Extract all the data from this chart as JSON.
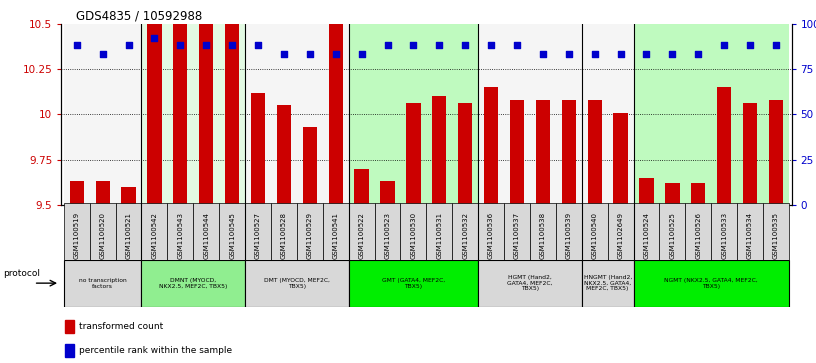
{
  "title": "GDS4835 / 10592988",
  "samples": [
    "GSM1100519",
    "GSM1100520",
    "GSM1100521",
    "GSM1100542",
    "GSM1100543",
    "GSM1100544",
    "GSM1100545",
    "GSM1100527",
    "GSM1100528",
    "GSM1100529",
    "GSM1100541",
    "GSM1100522",
    "GSM1100523",
    "GSM1100530",
    "GSM1100531",
    "GSM1100532",
    "GSM1100536",
    "GSM1100537",
    "GSM1100538",
    "GSM1100539",
    "GSM1100540",
    "GSM1102649",
    "GSM1100524",
    "GSM1100525",
    "GSM1100526",
    "GSM1100533",
    "GSM1100534",
    "GSM1100535"
  ],
  "transformed_count": [
    9.63,
    9.63,
    9.6,
    10.5,
    10.5,
    10.5,
    10.5,
    10.12,
    10.05,
    9.93,
    10.5,
    9.7,
    9.63,
    10.06,
    10.1,
    10.06,
    10.15,
    10.08,
    10.08,
    10.08,
    10.08,
    10.01,
    9.65,
    9.62,
    9.62,
    10.15,
    10.06,
    10.08
  ],
  "percentile_rank": [
    88,
    83,
    88,
    92,
    88,
    88,
    88,
    88,
    83,
    83,
    83,
    83,
    88,
    88,
    88,
    88,
    88,
    88,
    83,
    83,
    83,
    83,
    83,
    83,
    83,
    88,
    88,
    88
  ],
  "groups": [
    {
      "label": "no transcription\nfactors",
      "start": 0,
      "end": 3,
      "color": "#d8d8d8"
    },
    {
      "label": "DMNT (MYOCD,\nNKX2.5, MEF2C, TBX5)",
      "start": 3,
      "end": 7,
      "color": "#90ee90"
    },
    {
      "label": "DMT (MYOCD, MEF2C,\nTBX5)",
      "start": 7,
      "end": 11,
      "color": "#d8d8d8"
    },
    {
      "label": "GMT (GATA4, MEF2C,\nTBX5)",
      "start": 11,
      "end": 16,
      "color": "#00ee00"
    },
    {
      "label": "HGMT (Hand2,\nGATA4, MEF2C,\nTBX5)",
      "start": 16,
      "end": 20,
      "color": "#d8d8d8"
    },
    {
      "label": "HNGMT (Hand2,\nNKX2.5, GATA4,\nMEF2C, TBX5)",
      "start": 20,
      "end": 22,
      "color": "#d8d8d8"
    },
    {
      "label": "NGMT (NKX2.5, GATA4, MEF2C,\nTBX5)",
      "start": 22,
      "end": 28,
      "color": "#00ee00"
    }
  ],
  "bar_color": "#cc0000",
  "dot_color": "#0000cc",
  "ylim_left": [
    9.5,
    10.5
  ],
  "ylim_right": [
    0,
    100
  ],
  "yticks_left": [
    9.5,
    9.75,
    10.0,
    10.25,
    10.5
  ],
  "ytick_labels_left": [
    "9.5",
    "9.75",
    "10",
    "10.25",
    "10.5"
  ],
  "yticks_right": [
    0,
    25,
    50,
    75,
    100
  ],
  "ytick_labels_right": [
    "0",
    "25",
    "50",
    "75",
    "100%"
  ],
  "bg_color": "#ffffff",
  "dot_size": 25,
  "bar_width": 0.55,
  "xlabel_fontsize": 5.5,
  "ylabel_fontsize": 7.5
}
